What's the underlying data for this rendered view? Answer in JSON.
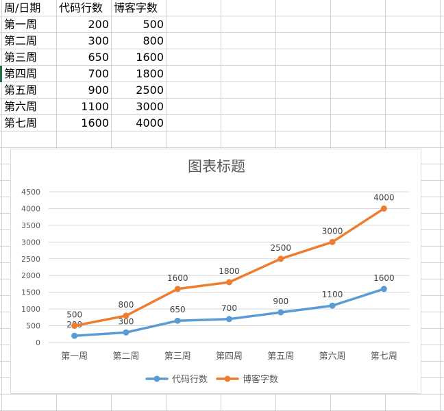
{
  "sheet": {
    "headers": [
      "周/日期",
      "代码行数",
      "博客字数"
    ],
    "rows": [
      [
        "第一周",
        "200",
        "500"
      ],
      [
        "第二周",
        "300",
        "800"
      ],
      [
        "第三周",
        "650",
        "1600"
      ],
      [
        "第四周",
        "700",
        "1800"
      ],
      [
        "第五周",
        "900",
        "2500"
      ],
      [
        "第六周",
        "1100",
        "3000"
      ],
      [
        "第七周",
        "1600",
        "4000"
      ]
    ]
  },
  "chart_data": {
    "type": "line",
    "title": "图表标题",
    "categories": [
      "第一周",
      "第二周",
      "第三周",
      "第四周",
      "第五周",
      "第六周",
      "第七周"
    ],
    "series": [
      {
        "name": "代码行数",
        "values": [
          200,
          300,
          650,
          700,
          900,
          1100,
          1600
        ],
        "color": "#5b9bd5"
      },
      {
        "name": "博客字数",
        "values": [
          500,
          800,
          1600,
          1800,
          2500,
          3000,
          4000
        ],
        "color": "#ed7d31"
      }
    ],
    "ylim": [
      0,
      4500
    ],
    "yticks": [
      0,
      500,
      1000,
      1500,
      2000,
      2500,
      3000,
      3500,
      4000,
      4500
    ],
    "grid": true,
    "data_labels": true,
    "legend": "bottom"
  }
}
